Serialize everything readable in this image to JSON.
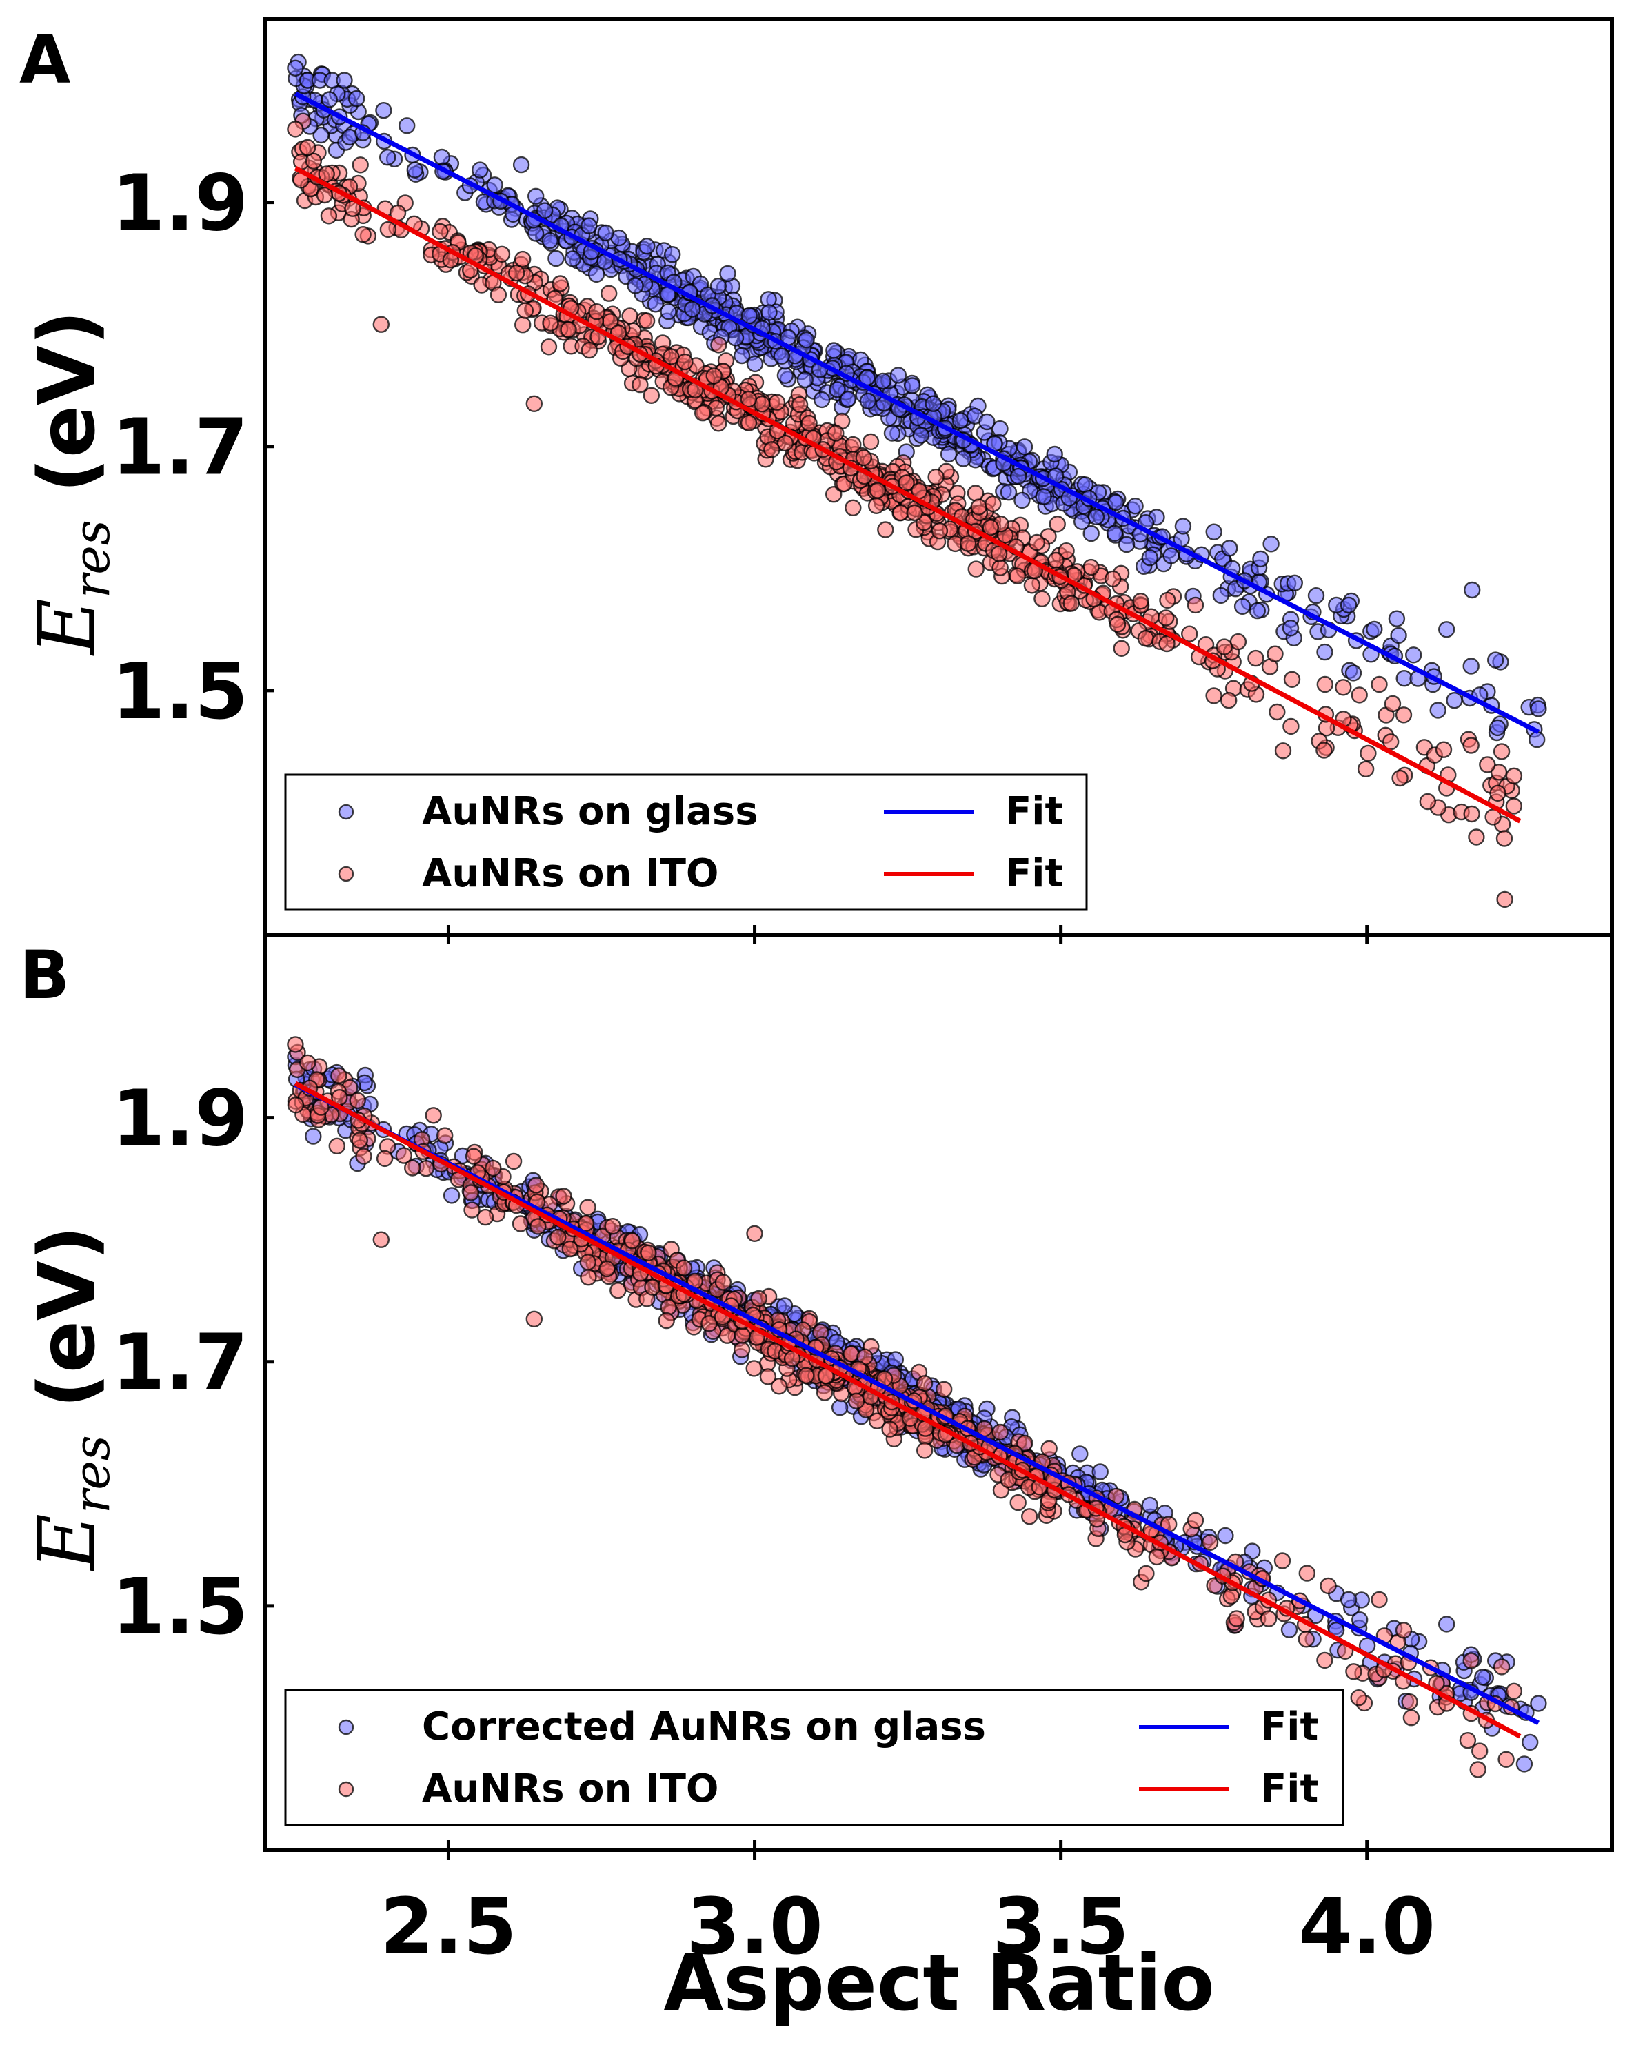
{
  "colors": {
    "glass_fill": "#6b6bff",
    "glass_line": "#0000ee",
    "ito_fill": "#ff6b6b",
    "ito_line": "#ee0000",
    "marker_edge": "#000000"
  },
  "chart_data": [
    {
      "type": "scatter",
      "panel": "A",
      "xlabel": "",
      "ylabel_main": "E",
      "ylabel_sub": "res",
      "ylabel_unit": " (eV)",
      "xlim": [
        2.2,
        4.4
      ],
      "ylim": [
        1.3,
        2.05
      ],
      "xticks": [
        2.5,
        3.0,
        3.5,
        4.0
      ],
      "xtick_labels": [
        "",
        "",
        "",
        ""
      ],
      "yticks": [
        1.5,
        1.7,
        1.9
      ],
      "ytick_labels": [
        "1.5",
        "1.7",
        "1.9"
      ],
      "grid": false,
      "legend_position": "lower-left",
      "legend": {
        "scatter_labels": [
          "AuNRs on glass",
          "AuNRs on ITO"
        ],
        "line_labels": [
          "Fit",
          "Fit"
        ]
      },
      "series": [
        {
          "name": "AuNRs on glass",
          "kind": "points",
          "color_key": "glass",
          "x_range": [
            2.25,
            4.28
          ],
          "fit": {
            "slope": -0.2575,
            "intercept": 2.568
          },
          "n_points": 650,
          "spread": 0.012,
          "seed": 11,
          "outliers": [
            [
              2.25,
              2.01
            ],
            [
              2.27,
              2.0
            ],
            [
              2.29,
              2.0
            ],
            [
              2.31,
              2.0
            ],
            [
              2.33,
              2.0
            ],
            [
              2.35,
              1.985
            ],
            [
              4.28,
              1.485
            ],
            [
              4.21,
              1.525
            ],
            [
              4.13,
              1.55
            ],
            [
              4.17,
              1.52
            ],
            [
              3.95,
              1.57
            ],
            [
              3.97,
              1.57
            ],
            [
              3.75,
              1.63
            ],
            [
              3.78,
              1.6
            ],
            [
              3.8,
              1.59
            ]
          ]
        },
        {
          "name": "AuNRs on ITO",
          "kind": "points",
          "color_key": "ito",
          "x_range": [
            2.25,
            4.24
          ],
          "fit": {
            "slope": -0.2675,
            "intercept": 2.53
          },
          "n_points": 650,
          "spread": 0.013,
          "seed": 23,
          "outliers": [
            [
              2.25,
              1.96
            ],
            [
              2.39,
              1.8
            ],
            [
              2.64,
              1.735
            ],
            [
              2.27,
              1.945
            ],
            [
              4.22,
              1.45
            ],
            [
              4.24,
              1.43
            ],
            [
              4.17,
              1.455
            ],
            [
              4.13,
              1.42
            ],
            [
              4.06,
              1.48
            ],
            [
              4.02,
              1.505
            ],
            [
              3.72,
              1.57
            ],
            [
              3.85,
              1.53
            ]
          ]
        },
        {
          "name": "Fit",
          "kind": "line",
          "color_key": "glass",
          "x": [
            2.25,
            4.28
          ],
          "y": [
            1.989,
            1.466
          ]
        },
        {
          "name": "Fit",
          "kind": "line",
          "color_key": "ito",
          "x": [
            2.25,
            4.25
          ],
          "y": [
            1.928,
            1.393
          ]
        }
      ]
    },
    {
      "type": "scatter",
      "panel": "B",
      "xlabel": "Aspect Ratio",
      "ylabel_main": "E",
      "ylabel_sub": "res",
      "ylabel_unit": " (eV)",
      "xlim": [
        2.2,
        4.4
      ],
      "ylim": [
        1.3,
        2.05
      ],
      "xticks": [
        2.5,
        3.0,
        3.5,
        4.0
      ],
      "xtick_labels": [
        "2.5",
        "3.0",
        "3.5",
        "4.0"
      ],
      "yticks": [
        1.5,
        1.7,
        1.9
      ],
      "ytick_labels": [
        "1.5",
        "1.7",
        "1.9"
      ],
      "grid": false,
      "legend_position": "lower-left",
      "legend": {
        "scatter_labels": [
          "Corrected AuNRs on glass",
          "AuNRs on ITO"
        ],
        "line_labels": [
          "Fit",
          "Fit"
        ]
      },
      "series": [
        {
          "name": "Corrected AuNRs on glass",
          "kind": "points",
          "color_key": "glass",
          "x_range": [
            2.25,
            4.28
          ],
          "fit": {
            "slope": -0.2575,
            "intercept": 2.506
          },
          "n_points": 650,
          "spread": 0.012,
          "seed": 37,
          "outliers": [
            [
              2.25,
              1.95
            ],
            [
              2.28,
              1.94
            ],
            [
              2.31,
              1.935
            ],
            [
              4.28,
              1.42
            ],
            [
              4.21,
              1.455
            ],
            [
              4.13,
              1.485
            ],
            [
              4.17,
              1.46
            ],
            [
              3.95,
              1.51
            ],
            [
              3.97,
              1.505
            ]
          ]
        },
        {
          "name": "AuNRs on ITO",
          "kind": "points",
          "color_key": "ito",
          "x_range": [
            2.25,
            4.24
          ],
          "fit": {
            "slope": -0.2675,
            "intercept": 2.53
          },
          "n_points": 650,
          "spread": 0.013,
          "seed": 53,
          "outliers": [
            [
              2.25,
              1.96
            ],
            [
              2.39,
              1.8
            ],
            [
              2.64,
              1.735
            ],
            [
              3.0,
              1.805
            ],
            [
              2.27,
              1.945
            ],
            [
              4.22,
              1.45
            ],
            [
              4.24,
              1.43
            ],
            [
              4.17,
              1.455
            ],
            [
              4.13,
              1.42
            ],
            [
              4.06,
              1.48
            ],
            [
              4.02,
              1.505
            ],
            [
              3.72,
              1.57
            ]
          ]
        },
        {
          "name": "Fit",
          "kind": "line",
          "color_key": "glass",
          "x": [
            2.25,
            4.28
          ],
          "y": [
            1.927,
            1.404
          ]
        },
        {
          "name": "Fit",
          "kind": "line",
          "color_key": "ito",
          "x": [
            2.25,
            4.25
          ],
          "y": [
            1.928,
            1.393
          ]
        }
      ]
    }
  ],
  "panel_labels": [
    "A",
    "B"
  ]
}
